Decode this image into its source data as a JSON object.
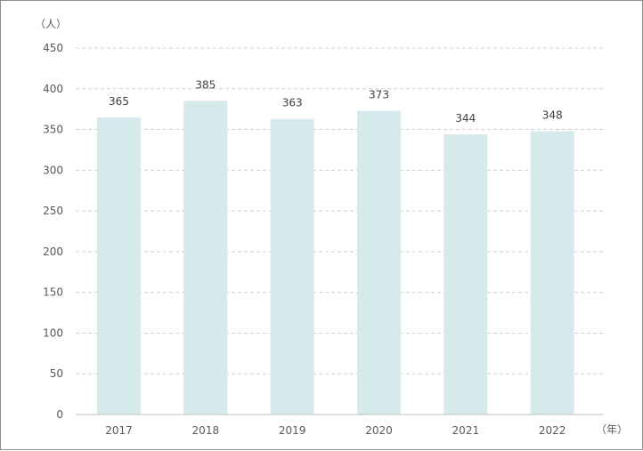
{
  "chart_data": {
    "type": "bar",
    "y_unit": "（人）",
    "x_unit": "（年）",
    "categories": [
      "2017",
      "2018",
      "2019",
      "2020",
      "2021",
      "2022"
    ],
    "values": [
      365,
      385,
      363,
      373,
      344,
      348
    ],
    "ylim": [
      0,
      450
    ],
    "y_ticks": [
      0,
      50,
      100,
      150,
      200,
      250,
      300,
      350,
      400,
      450
    ],
    "grid": true,
    "legend": "none",
    "colors": {
      "bar": "#d6e9eb",
      "grid": "#d0d0d0",
      "axis": "#bfbfbf",
      "text": "#595959"
    }
  }
}
